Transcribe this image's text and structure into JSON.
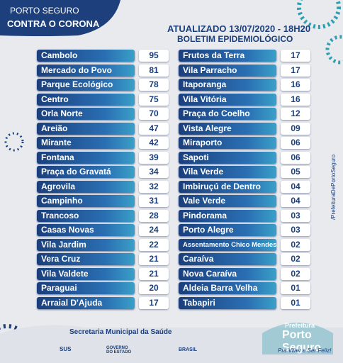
{
  "header": {
    "brand_top": "PORTO SEGURO",
    "brand_bottom": "CONTRA O CORONA",
    "updated": "ATUALIZADO 13/07/2020 - 18H20",
    "subtitle": "BOLETIM EPIDEMIOLÓGICO"
  },
  "table": {
    "left": [
      [
        "Cambolo",
        "95"
      ],
      [
        "Mercado do Povo",
        "81"
      ],
      [
        "Parque Ecológico",
        "78"
      ],
      [
        "Centro",
        "75"
      ],
      [
        "Orla Norte",
        "70"
      ],
      [
        "Areião",
        "47"
      ],
      [
        "Mirante",
        "42"
      ],
      [
        "Fontana",
        "39"
      ],
      [
        "Praça do Gravatá",
        "34"
      ],
      [
        "Agrovila",
        "32"
      ],
      [
        "Campinho",
        "31"
      ],
      [
        "Trancoso",
        "28"
      ],
      [
        "Casas Novas",
        "24"
      ],
      [
        "Vila Jardim",
        "22"
      ],
      [
        "Vera Cruz",
        "21"
      ],
      [
        "Vila Valdete",
        "21"
      ],
      [
        "Paraguai",
        "20"
      ],
      [
        "Arraial D'Ajuda",
        "17"
      ]
    ],
    "right": [
      [
        "Frutos da Terra",
        "17"
      ],
      [
        "Vila Parracho",
        "17"
      ],
      [
        "Itaporanga",
        "16"
      ],
      [
        "Vila Vitória",
        "16"
      ],
      [
        "Praça do Coelho",
        "12"
      ],
      [
        "Vista Alegre",
        "09"
      ],
      [
        "Miraporto",
        "06"
      ],
      [
        "Sapoti",
        "06"
      ],
      [
        "Vila Verde",
        "05"
      ],
      [
        "Imbiruçú de Dentro",
        "04"
      ],
      [
        "Vale Verde",
        "04"
      ],
      [
        "Pindorama",
        "03"
      ],
      [
        "Porto Alegre",
        "03"
      ],
      [
        "Assentamento Chico Mendes",
        "02"
      ],
      [
        "Caraíva",
        "02"
      ],
      [
        "Nova Caraíva",
        "02"
      ],
      [
        "Aldeia Barra Velha",
        "01"
      ],
      [
        "Tabapiri",
        "01"
      ]
    ]
  },
  "footer": {
    "secretariat": "Secretaria Municipal da Saúde",
    "sus": "SUS",
    "state": "GOVERNO DO ESTADO",
    "federal": "BRASIL",
    "prefeitura": "Prefeitura",
    "city": "Porto Seguro",
    "slogan": "Pra Viver e Ser Feliz!",
    "social": "/PrefeituraDePortoSeguro"
  }
}
